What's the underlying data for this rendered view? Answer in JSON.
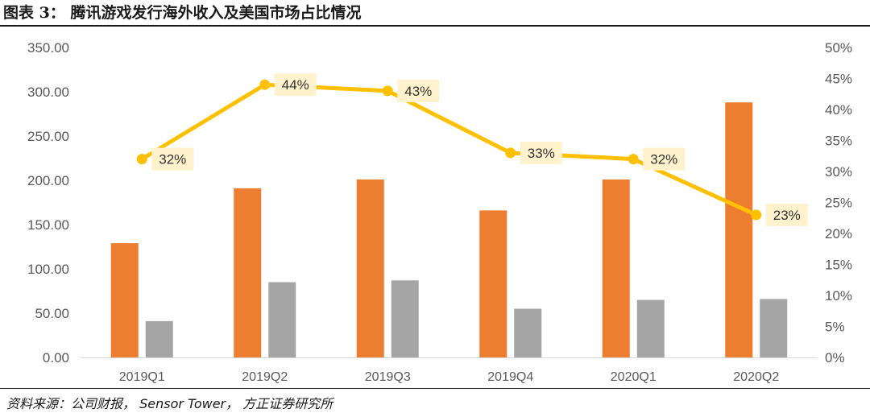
{
  "figure": {
    "title": "图表 3：  腾讯游戏发行海外收入及美国市场占比情况",
    "source": "资料来源：公司财报， Sensor Tower， 方正证券研究所"
  },
  "chart_data": {
    "type": "bar",
    "categories": [
      "2019Q1",
      "2019Q2",
      "2019Q3",
      "2019Q4",
      "2020Q1",
      "2020Q2"
    ],
    "series": [
      {
        "type": "bar",
        "axis": "left",
        "color": "#ED7D31",
        "values": [
          129,
          191,
          201,
          166,
          201,
          288
        ]
      },
      {
        "type": "bar",
        "axis": "left",
        "color": "#A5A5A5",
        "values": [
          41,
          85,
          87,
          55,
          65,
          66
        ]
      },
      {
        "type": "line",
        "axis": "right",
        "color": "#FFC000",
        "values": [
          32,
          44,
          43,
          33,
          32,
          23
        ],
        "labels": [
          "32%",
          "44%",
          "43%",
          "33%",
          "32%",
          "23%"
        ]
      }
    ],
    "y_left": {
      "min": 0,
      "max": 350,
      "step": 50,
      "tick_labels": [
        "0.00",
        "50.00",
        "100.00",
        "150.00",
        "200.00",
        "250.00",
        "300.00",
        "350.00"
      ]
    },
    "y_right": {
      "min": 0,
      "max": 50,
      "step": 5,
      "tick_labels": [
        "0%",
        "5%",
        "10%",
        "15%",
        "20%",
        "25%",
        "30%",
        "35%",
        "40%",
        "45%",
        "50%"
      ]
    },
    "grid": false,
    "legend": "none",
    "label_bg": "#FFF2CC"
  }
}
